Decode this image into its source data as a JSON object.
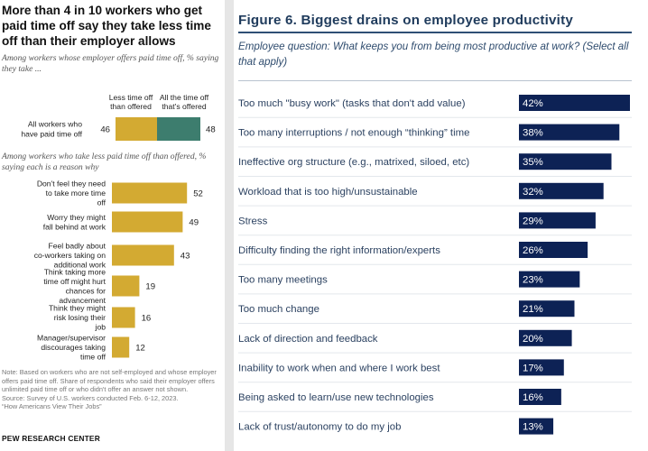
{
  "left_panel": {
    "title": "More than 4 in 10 workers who get paid time off say they take less time off than their employer allows",
    "subtitle_1": "Among workers whose employer offers paid time off, % saying they take ...",
    "subtitle_2": "Among workers who take less paid time off than offered, % saying each is a reason why",
    "note": "Note: Based on workers who are not self-employed and whose employer offers paid time off. Share of respondents who said their employer offers unlimited paid time off or who didn't offer an answer not shown.",
    "source": "Source: Survey of U.S. workers conducted Feb. 6-12, 2023.",
    "report": "“How Americans View Their Jobs”",
    "logo": "PEW RESEARCH CENTER"
  },
  "right_panel": {
    "title": "Figure 6. Biggest drains on employee productivity",
    "question": "Employee question: What keeps you from being most productive at work? (Select all that apply)"
  },
  "chart_data": [
    {
      "type": "bar",
      "orientation": "horizontal-stacked",
      "categories": [
        "All workers who have paid time off"
      ],
      "series": [
        {
          "name": "Less time off than offered",
          "values": [
            46
          ],
          "color": "#d3aa32"
        },
        {
          "name": "All the time off that's offered",
          "values": [
            48
          ],
          "color": "#3d7d6e"
        }
      ],
      "xlim": [
        0,
        100
      ]
    },
    {
      "type": "bar",
      "orientation": "horizontal",
      "categories": [
        "Don't feel they need to take more time off",
        "Worry they might fall behind at work",
        "Feel badly about co-workers taking on additional work",
        "Think taking more time off might hurt chances for advancement",
        "Think they might risk losing their job",
        "Manager/supervisor discourages taking time off"
      ],
      "values": [
        52,
        49,
        43,
        19,
        16,
        12
      ],
      "color": "#d3aa32",
      "xlim": [
        0,
        100
      ]
    },
    {
      "type": "bar",
      "orientation": "horizontal",
      "categories": [
        "Too much \"busy work\" (tasks that don't add value)",
        "Too many interruptions / not enough “thinking” time",
        "Ineffective org structure (e.g., matrixed, siloed, etc)",
        "Workload that is too high/unsustainable",
        "Stress",
        "Difficulty finding the right information/experts",
        "Too many meetings",
        "Too much change",
        "Lack of direction and feedback",
        "Inability to work when and where I work best",
        "Being asked to learn/use new technologies",
        "Lack of trust/autonomy to do my job"
      ],
      "values": [
        42,
        38,
        35,
        32,
        29,
        26,
        23,
        21,
        20,
        17,
        16,
        13
      ],
      "value_suffix": "%",
      "color": "#0d2255",
      "xlim": [
        0,
        42
      ]
    }
  ]
}
